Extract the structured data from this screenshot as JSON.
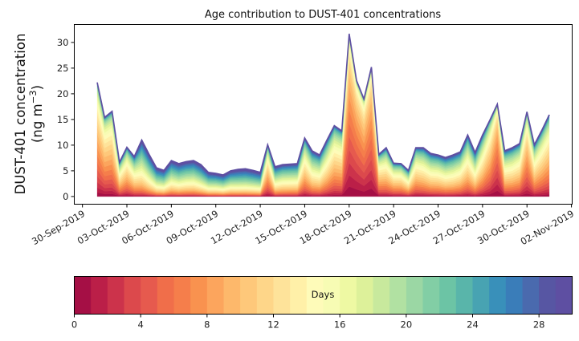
{
  "chart_data": {
    "type": "area",
    "stacked": true,
    "title": "Age contribution to DUST-401 concentrations",
    "ylabel_line1": "DUST-401 concentration",
    "ylabel_line2": "(ng m",
    "ylabel_sup": "−3",
    "ylabel_close": ")",
    "xlabel": "",
    "ylim": [
      -1.5,
      33.5
    ],
    "yticks": [
      0,
      5,
      10,
      15,
      20,
      25,
      30
    ],
    "x_start": "01-Oct-2019 00:00",
    "x_step_days": 0.5,
    "xlim_days_from_30sep": [
      -0.55,
      33.05
    ],
    "xticks": [
      {
        "day": 0,
        "label": "30-Sep-2019"
      },
      {
        "day": 3,
        "label": "03-Oct-2019"
      },
      {
        "day": 6,
        "label": "06-Oct-2019"
      },
      {
        "day": 9,
        "label": "09-Oct-2019"
      },
      {
        "day": 12,
        "label": "12-Oct-2019"
      },
      {
        "day": 15,
        "label": "15-Oct-2019"
      },
      {
        "day": 18,
        "label": "18-Oct-2019"
      },
      {
        "day": 21,
        "label": "21-Oct-2019"
      },
      {
        "day": 24,
        "label": "24-Oct-2019"
      },
      {
        "day": 27,
        "label": "27-Oct-2019"
      },
      {
        "day": 30,
        "label": "30-Oct-2019"
      },
      {
        "day": 33,
        "label": "02-Nov-2019"
      }
    ],
    "total": [
      22.2,
      15.4,
      16.6,
      6.7,
      9.6,
      7.8,
      11.0,
      8.2,
      5.6,
      5.1,
      7.0,
      6.4,
      6.8,
      7.0,
      6.2,
      4.7,
      4.5,
      4.2,
      5.0,
      5.3,
      5.4,
      5.1,
      4.7,
      10.1,
      5.8,
      6.2,
      6.3,
      6.4,
      11.4,
      8.9,
      8.1,
      11.0,
      13.8,
      12.8,
      31.7,
      22.6,
      19.0,
      25.2,
      8.2,
      9.5,
      6.5,
      6.4,
      5.1,
      9.5,
      9.5,
      8.4,
      8.1,
      7.6,
      8.1,
      8.7,
      12.0,
      8.6,
      12.0,
      14.9,
      18.0,
      8.9,
      9.5,
      10.3,
      16.5,
      10.1,
      12.9,
      15.9
    ],
    "mean_age_days": [
      8,
      9,
      9,
      12,
      11,
      14,
      18,
      20,
      22,
      22,
      20,
      21,
      20,
      20,
      22,
      23,
      22,
      23,
      22,
      24,
      24,
      24,
      24,
      10,
      18,
      17,
      17,
      17,
      12,
      15,
      15,
      13,
      11,
      11,
      5,
      5,
      6,
      5,
      11,
      12,
      12,
      12,
      14,
      12,
      13,
      14,
      14,
      15,
      15,
      14,
      13,
      15,
      12,
      9,
      5,
      13,
      13,
      12,
      8,
      12,
      11,
      10
    ],
    "colorbar": {
      "label": "Days",
      "min": 0,
      "max": 30,
      "n_bins": 30,
      "ticks": [
        0,
        4,
        8,
        12,
        16,
        20,
        24,
        28
      ],
      "colors": [
        "#a50f45",
        "#bb1f48",
        "#cc334b",
        "#dc494c",
        "#e65a4e",
        "#f06e4a",
        "#f57e4b",
        "#f9924f",
        "#fca55d",
        "#fdb86b",
        "#fec87a",
        "#fed689",
        "#fee39a",
        "#fff0a8",
        "#fefbb9",
        "#f7fcb4",
        "#eef9a3",
        "#ddf19a",
        "#c8e99d",
        "#b1e1a2",
        "#9bd7a4",
        "#82cea5",
        "#6cc4a5",
        "#59b5aa",
        "#48a3b2",
        "#3990ba",
        "#3a7db9",
        "#4a6aae",
        "#5756a3",
        "#5e4fa2"
      ]
    }
  }
}
